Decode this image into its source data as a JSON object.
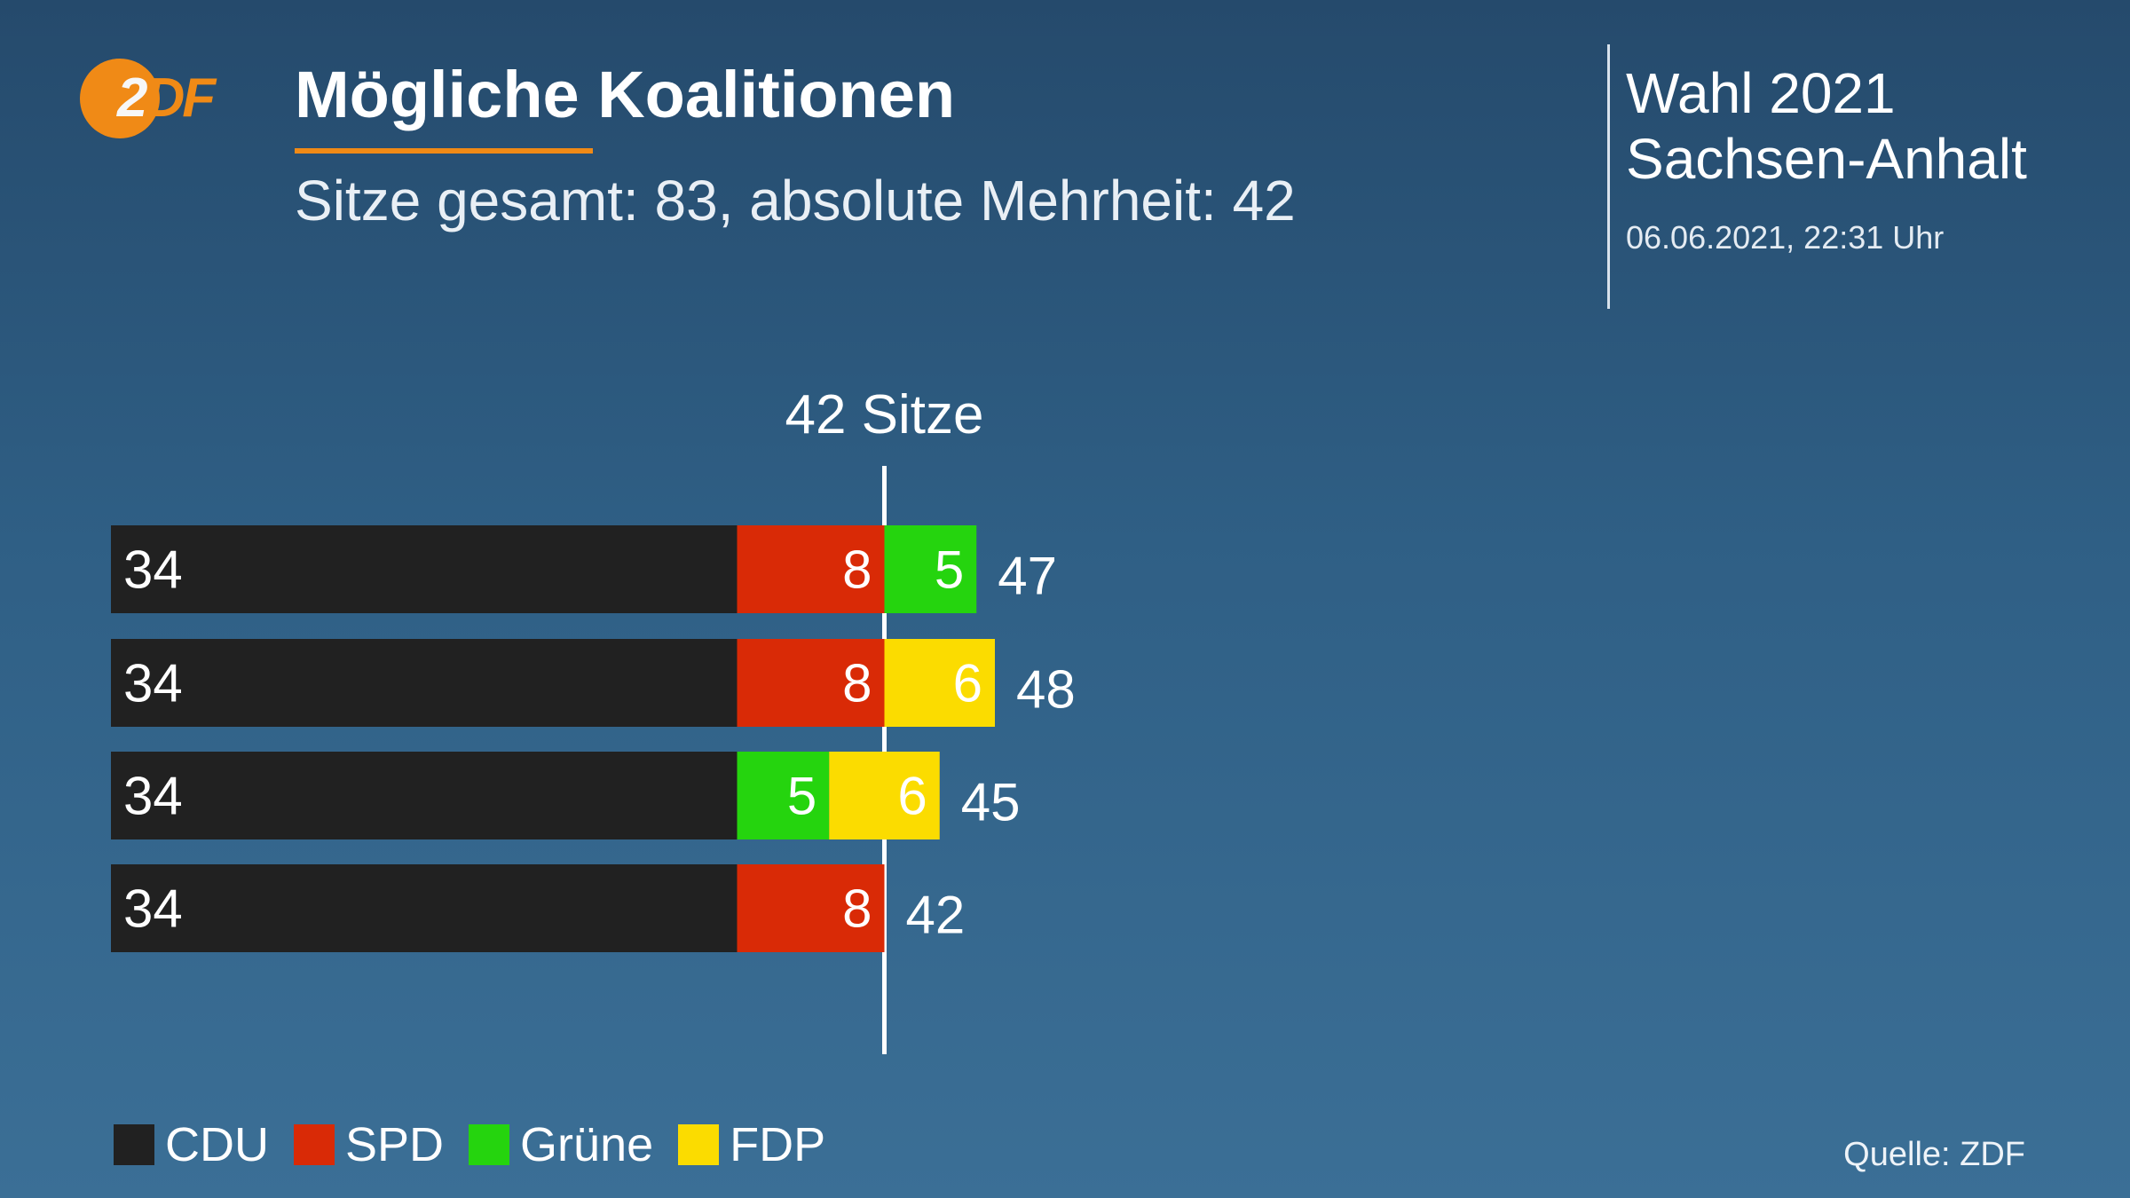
{
  "logo": {
    "lead": "2",
    "rest": "DF"
  },
  "header": {
    "title": "Mögliche Koalitionen",
    "subtitle": "Sitze gesamt: 83, absolute Mehrheit: 42",
    "election_line1": "Wahl 2021",
    "election_line2": "Sachsen-Anhalt",
    "datetime": "06.06.2021, 22:31 Uhr"
  },
  "colors": {
    "CDU": "#212121",
    "SPD": "#d92a06",
    "Grüne": "#25d40e",
    "FDP": "#fbdc00",
    "accent": "#f08a16"
  },
  "chart_data": {
    "type": "bar",
    "orientation": "horizontal",
    "stacked": true,
    "threshold": {
      "value": 42,
      "label": "42 Sitze"
    },
    "xlim": [
      0,
      83
    ],
    "rows": [
      {
        "segments": [
          {
            "party": "CDU",
            "value": 34
          },
          {
            "party": "SPD",
            "value": 8
          },
          {
            "party": "Grüne",
            "value": 5
          }
        ],
        "total": 47
      },
      {
        "segments": [
          {
            "party": "CDU",
            "value": 34
          },
          {
            "party": "SPD",
            "value": 8
          },
          {
            "party": "FDP",
            "value": 6
          }
        ],
        "total": 48
      },
      {
        "segments": [
          {
            "party": "CDU",
            "value": 34
          },
          {
            "party": "Grüne",
            "value": 5
          },
          {
            "party": "FDP",
            "value": 6
          }
        ],
        "total": 45
      },
      {
        "segments": [
          {
            "party": "CDU",
            "value": 34
          },
          {
            "party": "SPD",
            "value": 8
          }
        ],
        "total": 42
      }
    ],
    "legend": [
      {
        "party": "CDU",
        "label": "CDU"
      },
      {
        "party": "SPD",
        "label": "SPD"
      },
      {
        "party": "Grüne",
        "label": "Grüne"
      },
      {
        "party": "FDP",
        "label": "FDP"
      }
    ]
  },
  "footer": {
    "source": "Quelle: ZDF"
  }
}
